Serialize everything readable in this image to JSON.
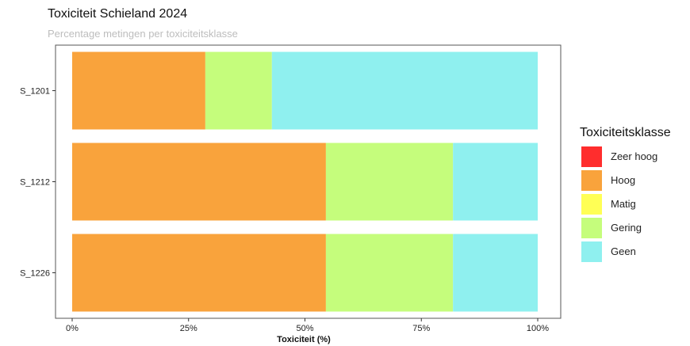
{
  "chart_data": {
    "type": "bar",
    "orientation": "horizontal",
    "stacked": true,
    "title": "Toxiciteit Schieland 2024",
    "subtitle": "Percentage metingen per toxiciteitsklasse",
    "xlabel": "Toxiciteit (%)",
    "ylabel": "",
    "xlim": [
      0,
      100
    ],
    "x_ticks": [
      "0%",
      "25%",
      "50%",
      "75%",
      "100%"
    ],
    "categories": [
      "S_1201",
      "S_1212",
      "S_1226"
    ],
    "series": [
      {
        "name": "Zeer hoog",
        "color": "#ff2d2d",
        "values": [
          0,
          0,
          0
        ]
      },
      {
        "name": "Hoog",
        "color": "#f9a33c",
        "values": [
          28.6,
          54.5,
          54.5
        ]
      },
      {
        "name": "Matig",
        "color": "#ffff55",
        "values": [
          0,
          0,
          0
        ]
      },
      {
        "name": "Gering",
        "color": "#c5fd7c",
        "values": [
          14.3,
          27.3,
          27.3
        ]
      },
      {
        "name": "Geen",
        "color": "#8ff0ef",
        "values": [
          57.1,
          18.2,
          18.2
        ]
      }
    ],
    "legend": {
      "title": "Toxiciteitsklasse",
      "position": "right"
    },
    "grid": false
  }
}
